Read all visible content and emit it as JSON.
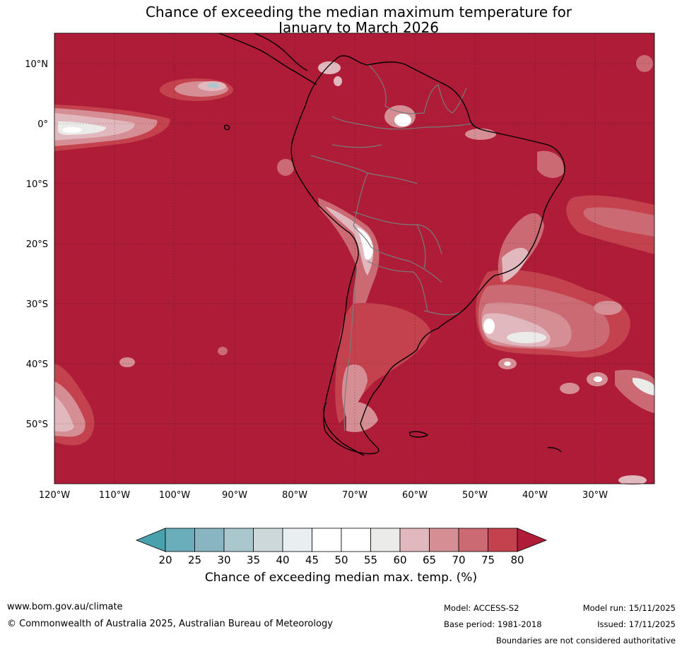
{
  "title": {
    "line1": "Chance of exceeding the median maximum temperature for",
    "line2": "January to March 2026"
  },
  "map": {
    "lat_labels": [
      "10°N",
      "0°",
      "10°S",
      "20°S",
      "30°S",
      "40°S",
      "50°S"
    ],
    "lon_labels": [
      "120°W",
      "110°W",
      "100°W",
      "90°W",
      "80°W",
      "70°W",
      "60°W",
      "50°W",
      "40°W",
      "30°W"
    ],
    "colors": {
      "gt80": "#ae1c37",
      "c75_80": "#c3424e",
      "c70_75": "#cc6a74",
      "c65_70": "#d68e95",
      "c60_65": "#e1b8bd",
      "c55_60": "#ebebe9",
      "c45_55": "#ffffff",
      "c40_45": "#e9eff1",
      "c35_40": "#cdd8da",
      "c30_35": "#a9c7cd",
      "c25_30": "#89b5c2",
      "c20_25": "#6aadbb",
      "lt20": "#4aa1ae"
    }
  },
  "colorbar": {
    "ticks": [
      "20",
      "25",
      "30",
      "35",
      "40",
      "45",
      "50",
      "55",
      "60",
      "65",
      "70",
      "75",
      "80"
    ],
    "title": "Chance of exceeding median max. temp. (%)"
  },
  "footer": {
    "website": "www.bom.gov.au/climate",
    "copyright": "© Commonwealth of Australia 2025, Australian Bureau of Meteorology",
    "model": "Model: ACCESS-S2",
    "base_period": "Base period: 1981-2018",
    "model_run": "Model run: 15/11/2025",
    "issued": "Issued: 17/11/2025",
    "boundaries": "Boundaries are not considered authoritative"
  }
}
